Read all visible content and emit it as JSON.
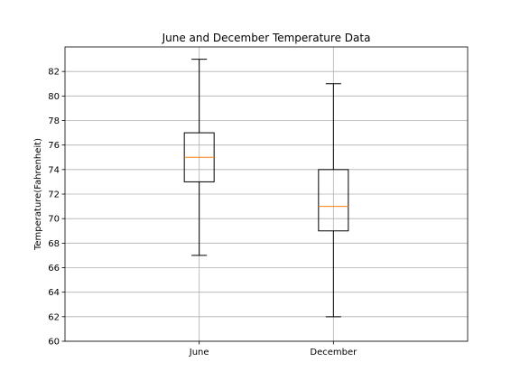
{
  "chart_data": {
    "type": "box",
    "title": "June and December Temperature Data",
    "xlabel": "",
    "ylabel": "Temperature(Fahrenheit)",
    "ylim": [
      60,
      84
    ],
    "yticks": [
      60,
      62,
      64,
      66,
      68,
      70,
      72,
      74,
      76,
      78,
      80,
      82
    ],
    "grid": true,
    "categories": [
      "June",
      "December"
    ],
    "boxes": [
      {
        "category": "June",
        "whisker_low": 67,
        "q1": 73,
        "median": 75,
        "q3": 77,
        "whisker_high": 83
      },
      {
        "category": "December",
        "whisker_low": 62,
        "q1": 69,
        "median": 71,
        "q3": 74,
        "whisker_high": 81
      }
    ],
    "colors": {
      "box": "#000000",
      "median": "#ff7f0e",
      "grid": "#b0b0b0"
    }
  }
}
